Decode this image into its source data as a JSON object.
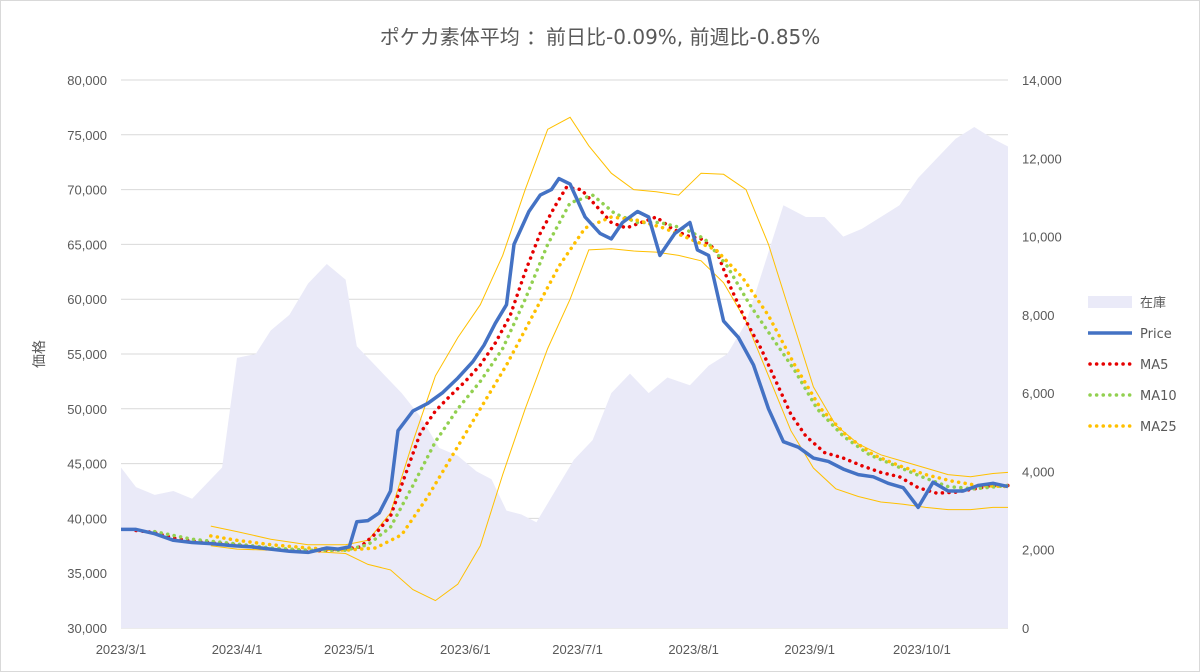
{
  "chart_data": {
    "type": "line",
    "title": "ポケカ素体平均 ：前日比-0.09%, 前週比-0.85%",
    "ylabel": "価格",
    "y2label": "",
    "ylim": [
      30000,
      80000
    ],
    "y2lim": [
      0,
      14000
    ],
    "xlim": [
      "2023-03-01",
      "2023-10-24"
    ],
    "x_ticks": [
      "2023/3/1",
      "2023/4/1",
      "2023/5/1",
      "2023/6/1",
      "2023/7/1",
      "2023/8/1",
      "2023/9/1",
      "2023/10/1"
    ],
    "x_tick_dates": [
      "2023-03-01",
      "2023-04-01",
      "2023-05-01",
      "2023-06-01",
      "2023-07-01",
      "2023-08-01",
      "2023-09-01",
      "2023-10-01"
    ],
    "y_ticks": [
      "80,000",
      "75,000",
      "70,000",
      "65,000",
      "60,000",
      "55,000",
      "50,000",
      "45,000",
      "40,000",
      "35,000",
      "30,000"
    ],
    "y2_ticks": [
      "14,000",
      "12,000",
      "10,000",
      "8,000",
      "6,000",
      "4,000",
      "2,000",
      "0"
    ],
    "grid": true,
    "legend_position": "right",
    "legend": [
      "在庫",
      "Price",
      "MA5",
      "MA10",
      "MA25"
    ],
    "colors": {
      "inventory": "#eaeaf8",
      "price": "#4472c4",
      "ma5": "#e60000",
      "ma10": "#92d050",
      "ma25": "#ffc000",
      "band": "#ffc000",
      "grid": "#d9d9d9",
      "text": "#595959"
    },
    "series": [
      {
        "name": "在庫",
        "axis": "right",
        "style": "area",
        "x": [
          "2023-03-01",
          "2023-03-05",
          "2023-03-10",
          "2023-03-15",
          "2023-03-20",
          "2023-03-25",
          "2023-03-28",
          "2023-04-01",
          "2023-04-06",
          "2023-04-10",
          "2023-04-15",
          "2023-04-20",
          "2023-04-25",
          "2023-04-30",
          "2023-05-03",
          "2023-05-06",
          "2023-05-10",
          "2023-05-15",
          "2023-05-20",
          "2023-05-25",
          "2023-05-30",
          "2023-06-04",
          "2023-06-08",
          "2023-06-12",
          "2023-06-16",
          "2023-06-20",
          "2023-06-25",
          "2023-06-30",
          "2023-07-05",
          "2023-07-10",
          "2023-07-15",
          "2023-07-20",
          "2023-07-25",
          "2023-07-31",
          "2023-08-05",
          "2023-08-10",
          "2023-08-15",
          "2023-08-20",
          "2023-08-25",
          "2023-08-31",
          "2023-09-05",
          "2023-09-10",
          "2023-09-15",
          "2023-09-20",
          "2023-09-25",
          "2023-09-30",
          "2023-10-05",
          "2023-10-10",
          "2023-10-15",
          "2023-10-20",
          "2023-10-24"
        ],
        "values": [
          4100,
          3600,
          3400,
          3500,
          3300,
          3800,
          4100,
          6900,
          7000,
          7600,
          8000,
          8800,
          9300,
          8900,
          7200,
          6900,
          6500,
          6000,
          5400,
          4600,
          4400,
          4000,
          3800,
          3000,
          2900,
          2700,
          3500,
          4300,
          4800,
          6000,
          6500,
          6000,
          6400,
          6200,
          6700,
          7000,
          7800,
          9300,
          10800,
          10500,
          10500,
          10000,
          10200,
          10500,
          10800,
          11500,
          12000,
          12500,
          12800,
          12500,
          12300
        ]
      },
      {
        "name": "Price",
        "axis": "left",
        "style": "line",
        "x": [
          "2023-03-01",
          "2023-03-05",
          "2023-03-10",
          "2023-03-15",
          "2023-03-20",
          "2023-03-25",
          "2023-03-31",
          "2023-04-05",
          "2023-04-10",
          "2023-04-15",
          "2023-04-20",
          "2023-04-25",
          "2023-04-28",
          "2023-05-01",
          "2023-05-03",
          "2023-05-06",
          "2023-05-09",
          "2023-05-12",
          "2023-05-14",
          "2023-05-18",
          "2023-05-22",
          "2023-05-26",
          "2023-05-30",
          "2023-06-03",
          "2023-06-06",
          "2023-06-09",
          "2023-06-12",
          "2023-06-14",
          "2023-06-18",
          "2023-06-21",
          "2023-06-24",
          "2023-06-26",
          "2023-06-29",
          "2023-07-03",
          "2023-07-07",
          "2023-07-10",
          "2023-07-13",
          "2023-07-17",
          "2023-07-20",
          "2023-07-23",
          "2023-07-27",
          "2023-07-31",
          "2023-08-02",
          "2023-08-05",
          "2023-08-09",
          "2023-08-13",
          "2023-08-17",
          "2023-08-21",
          "2023-08-25",
          "2023-08-29",
          "2023-09-02",
          "2023-09-06",
          "2023-09-10",
          "2023-09-14",
          "2023-09-18",
          "2023-09-22",
          "2023-09-26",
          "2023-09-30",
          "2023-10-04",
          "2023-10-08",
          "2023-10-12",
          "2023-10-16",
          "2023-10-20",
          "2023-10-24"
        ],
        "values": [
          39000,
          39000,
          38600,
          38000,
          37800,
          37700,
          37500,
          37400,
          37200,
          37000,
          36900,
          37300,
          37200,
          37400,
          39700,
          39800,
          40500,
          42500,
          48000,
          49800,
          50500,
          51500,
          52800,
          54300,
          55800,
          57800,
          59500,
          65000,
          68000,
          69500,
          70000,
          71000,
          70500,
          67500,
          66000,
          65500,
          67000,
          68000,
          67500,
          64000,
          66000,
          67000,
          64500,
          64000,
          58000,
          56500,
          54000,
          50000,
          47000,
          46500,
          45500,
          45200,
          44500,
          44000,
          43800,
          43200,
          42800,
          41000,
          43300,
          42500,
          42500,
          43000,
          43200,
          42900
        ]
      },
      {
        "name": "MA5",
        "axis": "left",
        "style": "dotted",
        "x": [
          "2023-03-05",
          "2023-03-10",
          "2023-03-15",
          "2023-03-20",
          "2023-03-25",
          "2023-03-31",
          "2023-04-05",
          "2023-04-10",
          "2023-04-15",
          "2023-04-20",
          "2023-04-25",
          "2023-04-30",
          "2023-05-04",
          "2023-05-08",
          "2023-05-12",
          "2023-05-16",
          "2023-05-20",
          "2023-05-24",
          "2023-05-28",
          "2023-06-01",
          "2023-06-05",
          "2023-06-09",
          "2023-06-13",
          "2023-06-17",
          "2023-06-21",
          "2023-06-25",
          "2023-06-28",
          "2023-07-02",
          "2023-07-06",
          "2023-07-10",
          "2023-07-14",
          "2023-07-18",
          "2023-07-22",
          "2023-07-26",
          "2023-07-30",
          "2023-08-03",
          "2023-08-07",
          "2023-08-11",
          "2023-08-15",
          "2023-08-19",
          "2023-08-23",
          "2023-08-27",
          "2023-08-31",
          "2023-09-05",
          "2023-09-10",
          "2023-09-15",
          "2023-09-20",
          "2023-09-25",
          "2023-09-30",
          "2023-10-05",
          "2023-10-10",
          "2023-10-15",
          "2023-10-20",
          "2023-10-24"
        ],
        "values": [
          38900,
          38700,
          38200,
          37900,
          37800,
          37600,
          37400,
          37200,
          37100,
          37000,
          37100,
          37200,
          37400,
          38600,
          40200,
          44000,
          47800,
          49800,
          51200,
          52500,
          54000,
          56000,
          58500,
          62500,
          66000,
          68500,
          70200,
          70000,
          68500,
          67000,
          66500,
          67000,
          67500,
          66500,
          65800,
          65500,
          64500,
          61000,
          58000,
          55500,
          52500,
          49500,
          47500,
          46000,
          45500,
          44800,
          44200,
          43800,
          42800,
          42300,
          42400,
          42700,
          43000,
          43000
        ]
      },
      {
        "name": "MA10",
        "axis": "left",
        "style": "dotted",
        "x": [
          "2023-03-10",
          "2023-03-20",
          "2023-03-31",
          "2023-04-10",
          "2023-04-20",
          "2023-04-30",
          "2023-05-06",
          "2023-05-12",
          "2023-05-18",
          "2023-05-24",
          "2023-05-30",
          "2023-06-05",
          "2023-06-11",
          "2023-06-17",
          "2023-06-23",
          "2023-06-29",
          "2023-07-05",
          "2023-07-11",
          "2023-07-17",
          "2023-07-23",
          "2023-07-29",
          "2023-08-04",
          "2023-08-10",
          "2023-08-16",
          "2023-08-22",
          "2023-08-28",
          "2023-09-03",
          "2023-09-10",
          "2023-09-17",
          "2023-09-24",
          "2023-10-01",
          "2023-10-08",
          "2023-10-15",
          "2023-10-24"
        ],
        "values": [
          38800,
          38100,
          37700,
          37300,
          37100,
          37100,
          37600,
          39200,
          43000,
          47000,
          50000,
          52500,
          55500,
          60000,
          65000,
          68800,
          69500,
          67800,
          67000,
          67000,
          66500,
          65500,
          63000,
          59500,
          56500,
          53500,
          50000,
          47500,
          45800,
          44800,
          43800,
          42900,
          42700,
          43000
        ]
      },
      {
        "name": "MA25",
        "axis": "left",
        "style": "dotted",
        "x": [
          "2023-03-25",
          "2023-04-01",
          "2023-04-10",
          "2023-04-20",
          "2023-04-30",
          "2023-05-08",
          "2023-05-15",
          "2023-05-22",
          "2023-05-29",
          "2023-06-05",
          "2023-06-12",
          "2023-06-19",
          "2023-06-26",
          "2023-07-03",
          "2023-07-10",
          "2023-07-17",
          "2023-07-24",
          "2023-07-31",
          "2023-08-07",
          "2023-08-14",
          "2023-08-21",
          "2023-08-28",
          "2023-09-04",
          "2023-09-11",
          "2023-09-18",
          "2023-09-25",
          "2023-10-02",
          "2023-10-09",
          "2023-10-16",
          "2023-10-24"
        ],
        "values": [
          38400,
          38000,
          37600,
          37300,
          37100,
          37300,
          38500,
          42000,
          46000,
          50000,
          54000,
          58500,
          63000,
          66500,
          67500,
          67200,
          66500,
          65500,
          64500,
          62000,
          58500,
          54000,
          50000,
          47500,
          45800,
          44800,
          44000,
          43400,
          43000,
          42900
        ]
      },
      {
        "name": "upper band",
        "axis": "left",
        "style": "thin",
        "x": [
          "2023-03-25",
          "2023-04-01",
          "2023-04-10",
          "2023-04-20",
          "2023-04-30",
          "2023-05-06",
          "2023-05-12",
          "2023-05-18",
          "2023-05-24",
          "2023-05-30",
          "2023-06-05",
          "2023-06-11",
          "2023-06-17",
          "2023-06-23",
          "2023-06-29",
          "2023-07-04",
          "2023-07-10",
          "2023-07-16",
          "2023-07-22",
          "2023-07-28",
          "2023-08-03",
          "2023-08-09",
          "2023-08-15",
          "2023-08-21",
          "2023-08-27",
          "2023-09-02",
          "2023-09-08",
          "2023-09-14",
          "2023-09-20",
          "2023-09-26",
          "2023-10-02",
          "2023-10-08",
          "2023-10-14",
          "2023-10-20",
          "2023-10-24"
        ],
        "values": [
          39300,
          38800,
          38100,
          37600,
          37600,
          38000,
          40500,
          47000,
          53000,
          56500,
          59500,
          64000,
          70000,
          75500,
          76600,
          74000,
          71500,
          70000,
          69800,
          69500,
          71500,
          71400,
          70000,
          65000,
          58500,
          52000,
          48500,
          46800,
          45800,
          45200,
          44600,
          44000,
          43800,
          44100,
          44200
        ]
      },
      {
        "name": "lower band",
        "axis": "left",
        "style": "thin",
        "x": [
          "2023-03-25",
          "2023-04-01",
          "2023-04-10",
          "2023-04-20",
          "2023-04-30",
          "2023-05-06",
          "2023-05-12",
          "2023-05-18",
          "2023-05-24",
          "2023-05-30",
          "2023-06-05",
          "2023-06-11",
          "2023-06-17",
          "2023-06-23",
          "2023-06-29",
          "2023-07-04",
          "2023-07-10",
          "2023-07-16",
          "2023-07-22",
          "2023-07-28",
          "2023-08-03",
          "2023-08-09",
          "2023-08-15",
          "2023-08-21",
          "2023-08-27",
          "2023-09-02",
          "2023-09-08",
          "2023-09-14",
          "2023-09-20",
          "2023-09-26",
          "2023-10-02",
          "2023-10-08",
          "2023-10-14",
          "2023-10-20",
          "2023-10-24"
        ],
        "values": [
          37500,
          37200,
          37100,
          37000,
          36800,
          35800,
          35300,
          33500,
          32500,
          34000,
          37500,
          44000,
          50000,
          55500,
          60000,
          64500,
          64600,
          64400,
          64300,
          64000,
          63500,
          61500,
          58000,
          53000,
          48000,
          44600,
          42700,
          42000,
          41500,
          41300,
          41000,
          40800,
          40800,
          41000,
          41000
        ]
      }
    ]
  }
}
